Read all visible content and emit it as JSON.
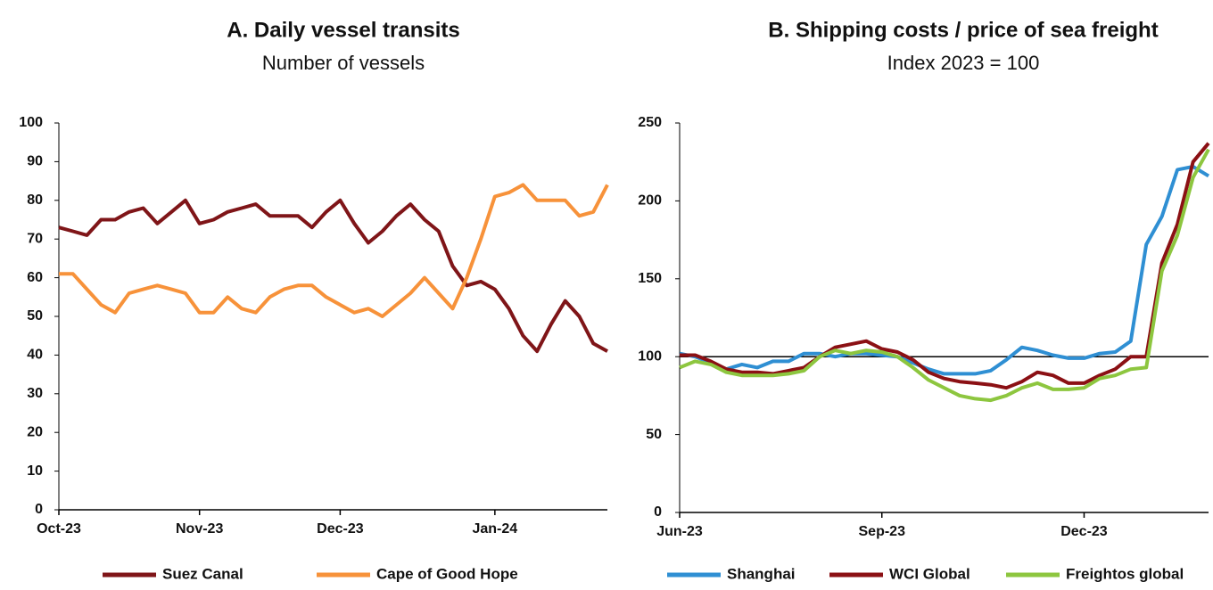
{
  "chart_data": [
    {
      "type": "line",
      "title": "A. Daily vessel transits",
      "subtitle": "Number of vessels",
      "categories": [
        "Oct-23",
        null,
        null,
        null,
        null,
        null,
        null,
        null,
        null,
        null,
        "Nov-23",
        null,
        null,
        null,
        null,
        null,
        null,
        null,
        null,
        null,
        "Dec-23",
        null,
        null,
        null,
        null,
        null,
        null,
        null,
        null,
        null,
        null,
        "Jan-24",
        null,
        null,
        null,
        null,
        null,
        null,
        null,
        null
      ],
      "series": [
        {
          "name": "Suez Canal",
          "color": "#7f1518",
          "values": [
            73,
            72,
            71,
            75,
            75,
            77,
            78,
            74,
            77,
            80,
            74,
            75,
            77,
            78,
            79,
            76,
            76,
            76,
            73,
            77,
            80,
            74,
            69,
            72,
            76,
            79,
            75,
            72,
            63,
            58,
            59,
            57,
            52,
            45,
            41,
            48,
            54,
            50,
            43,
            41
          ]
        },
        {
          "name": "Cape of Good Hope",
          "color": "#f7923a",
          "values": [
            61,
            61,
            57,
            53,
            51,
            56,
            57,
            58,
            57,
            56,
            51,
            51,
            55,
            52,
            51,
            55,
            57,
            58,
            58,
            55,
            53,
            51,
            52,
            50,
            53,
            56,
            60,
            56,
            52,
            60,
            70,
            81,
            82,
            84,
            80,
            80,
            80,
            76,
            77,
            84
          ]
        }
      ],
      "ylim": [
        0,
        100
      ],
      "yticks": [
        0,
        10,
        20,
        30,
        40,
        50,
        60,
        70,
        80,
        90,
        100
      ],
      "legend": "bottom"
    },
    {
      "type": "line",
      "title": "B. Shipping costs / price of sea freight",
      "subtitle": "Index 2023 = 100",
      "categories": [
        "Jun-23",
        null,
        null,
        null,
        null,
        null,
        null,
        null,
        null,
        null,
        null,
        null,
        null,
        "Sep-23",
        null,
        null,
        null,
        null,
        null,
        null,
        null,
        null,
        null,
        null,
        null,
        null,
        "Dec-23",
        null,
        null,
        null,
        null,
        null,
        null,
        null,
        null
      ],
      "series": [
        {
          "name": "Shanghai",
          "color": "#2f8fd3",
          "values": [
            102,
            100,
            96,
            92,
            95,
            93,
            97,
            97,
            102,
            102,
            100,
            102,
            102,
            101,
            100,
            96,
            92,
            89,
            89,
            89,
            91,
            98,
            106,
            104,
            101,
            99,
            99,
            102,
            103,
            110,
            172,
            190,
            220,
            222,
            216
          ]
        },
        {
          "name": "WCI Global",
          "color": "#8b1014",
          "values": [
            101,
            101,
            97,
            92,
            90,
            90,
            89,
            91,
            93,
            100,
            106,
            108,
            110,
            105,
            103,
            98,
            90,
            86,
            84,
            83,
            82,
            80,
            84,
            90,
            88,
            83,
            83,
            88,
            92,
            100,
            100,
            160,
            185,
            225,
            237
          ]
        },
        {
          "name": "Freightos global",
          "color": "#8dc63f",
          "values": [
            93,
            97,
            95,
            90,
            88,
            88,
            88,
            89,
            91,
            100,
            104,
            102,
            104,
            103,
            100,
            93,
            85,
            80,
            75,
            73,
            72,
            75,
            80,
            83,
            79,
            79,
            80,
            86,
            88,
            92,
            93,
            155,
            178,
            215,
            233
          ]
        }
      ],
      "ylim": [
        0,
        250
      ],
      "yticks": [
        0,
        50,
        100,
        150,
        200,
        250
      ],
      "hline": 100,
      "legend": "bottom"
    }
  ]
}
